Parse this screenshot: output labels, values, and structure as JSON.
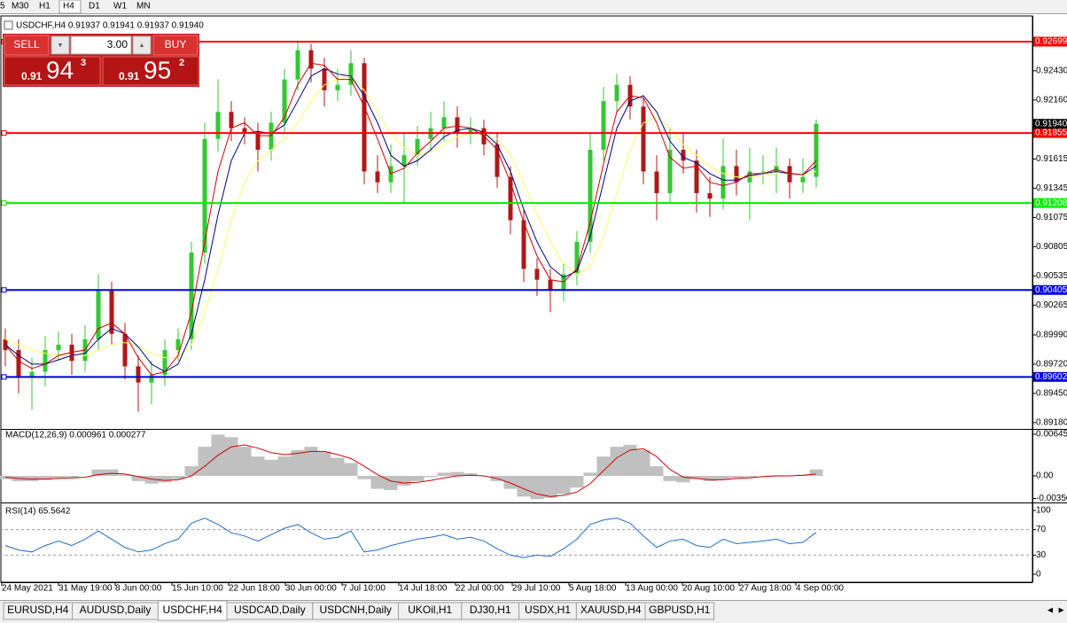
{
  "toolbar": {
    "timeframes": [
      "5",
      "M30",
      "H1",
      "H4",
      "D1",
      "W1",
      "MN"
    ],
    "active": "H4"
  },
  "trade_panel": {
    "sell": {
      "label": "SELL",
      "prefix": "0.91",
      "big": "94",
      "sup": "3"
    },
    "volume": "3.00",
    "buy": {
      "label": "BUY",
      "prefix": "0.91",
      "big": "95",
      "sup": "2"
    }
  },
  "chart_data": [
    {
      "type": "candlestick",
      "title": "USDCHF,H4  0.91937 0.91941 0.91937 0.91940",
      "up_color": "#32c832",
      "down_color": "#b01818",
      "open": [
        0.8995,
        0.8985,
        0.896,
        0.8965,
        0.8985,
        0.899,
        0.8975,
        0.8995,
        0.904,
        0.9,
        0.897,
        0.8955,
        0.8962,
        0.8985,
        0.8995,
        0.9075,
        0.918,
        0.9205,
        0.919,
        0.9185,
        0.917,
        0.9195,
        0.9235,
        0.9262,
        0.9245,
        0.9225,
        0.923,
        0.925,
        0.915,
        0.914,
        0.9155,
        0.9165,
        0.918,
        0.919,
        0.92,
        0.9185,
        0.919,
        0.9175,
        0.9145,
        0.9105,
        0.906,
        0.905,
        0.904,
        0.9055,
        0.9085,
        0.917,
        0.9215,
        0.923,
        0.921,
        0.915,
        0.913,
        0.917,
        0.916,
        0.913,
        0.9125,
        0.9155,
        0.914,
        0.915,
        0.915,
        0.9155,
        0.914,
        0.9145
      ],
      "high": [
        0.9005,
        0.8995,
        0.8978,
        0.8998,
        0.9002,
        0.9,
        0.9008,
        0.9055,
        0.9048,
        0.901,
        0.898,
        0.8975,
        0.8995,
        0.9005,
        0.9085,
        0.9195,
        0.9235,
        0.9215,
        0.92,
        0.9195,
        0.9205,
        0.9245,
        0.927,
        0.9268,
        0.9255,
        0.9245,
        0.9262,
        0.9255,
        0.9165,
        0.9175,
        0.9185,
        0.9192,
        0.9205,
        0.9215,
        0.921,
        0.92,
        0.9198,
        0.9185,
        0.9155,
        0.9115,
        0.907,
        0.906,
        0.9065,
        0.9095,
        0.9185,
        0.9228,
        0.924,
        0.9238,
        0.9218,
        0.9165,
        0.919,
        0.9185,
        0.917,
        0.9145,
        0.918,
        0.917,
        0.9172,
        0.9165,
        0.9172,
        0.9162,
        0.9162,
        0.9198
      ],
      "low": [
        0.897,
        0.8945,
        0.893,
        0.8952,
        0.8975,
        0.8962,
        0.8965,
        0.8985,
        0.899,
        0.8958,
        0.8928,
        0.8935,
        0.8952,
        0.8975,
        0.8985,
        0.9065,
        0.9168,
        0.9178,
        0.9175,
        0.915,
        0.916,
        0.9185,
        0.9225,
        0.9232,
        0.921,
        0.9215,
        0.922,
        0.9138,
        0.913,
        0.913,
        0.912,
        0.9155,
        0.9168,
        0.9178,
        0.9172,
        0.9175,
        0.9165,
        0.9135,
        0.9092,
        0.9048,
        0.9035,
        0.902,
        0.903,
        0.9045,
        0.9075,
        0.916,
        0.9205,
        0.9198,
        0.9138,
        0.9105,
        0.912,
        0.9148,
        0.9112,
        0.9108,
        0.9115,
        0.9128,
        0.9105,
        0.9138,
        0.913,
        0.9125,
        0.913,
        0.9135
      ],
      "close": [
        0.8985,
        0.896,
        0.8965,
        0.8985,
        0.899,
        0.8975,
        0.8995,
        0.904,
        0.9,
        0.897,
        0.8955,
        0.8962,
        0.8985,
        0.8995,
        0.9075,
        0.918,
        0.9205,
        0.919,
        0.9185,
        0.917,
        0.9195,
        0.9235,
        0.9262,
        0.9245,
        0.9225,
        0.923,
        0.925,
        0.915,
        0.914,
        0.9155,
        0.9165,
        0.918,
        0.919,
        0.92,
        0.9185,
        0.919,
        0.9175,
        0.9145,
        0.9105,
        0.906,
        0.905,
        0.904,
        0.9055,
        0.9085,
        0.917,
        0.9215,
        0.923,
        0.921,
        0.915,
        0.913,
        0.917,
        0.916,
        0.913,
        0.9125,
        0.9155,
        0.914,
        0.915,
        0.915,
        0.9155,
        0.914,
        0.9145,
        0.9194
      ],
      "moving_averages": [
        {
          "color": "#ffff60",
          "values": [
            0.8995,
            0.899,
            0.8985,
            0.8982,
            0.898,
            0.898,
            0.898,
            0.8985,
            0.899,
            0.8992,
            0.8988,
            0.8982,
            0.8978,
            0.8978,
            0.899,
            0.902,
            0.906,
            0.9105,
            0.914,
            0.916,
            0.917,
            0.918,
            0.9195,
            0.9215,
            0.923,
            0.9235,
            0.9238,
            0.9225,
            0.9205,
            0.9185,
            0.9172,
            0.9165,
            0.9168,
            0.9175,
            0.9182,
            0.9185,
            0.9185,
            0.918,
            0.9165,
            0.914,
            0.911,
            0.9085,
            0.9065,
            0.9055,
            0.9062,
            0.909,
            0.913,
            0.917,
            0.9195,
            0.92,
            0.919,
            0.9175,
            0.9165,
            0.9155,
            0.9148,
            0.9145,
            0.9145,
            0.9146,
            0.9148,
            0.9148,
            0.9147,
            0.915
          ]
        },
        {
          "color": "#000080",
          "values": [
            0.899,
            0.898,
            0.8972,
            0.8972,
            0.8976,
            0.898,
            0.8982,
            0.8995,
            0.9005,
            0.9,
            0.8988,
            0.8972,
            0.8965,
            0.8972,
            0.9,
            0.905,
            0.911,
            0.916,
            0.9185,
            0.9187,
            0.9185,
            0.9193,
            0.9215,
            0.9238,
            0.9245,
            0.924,
            0.9238,
            0.922,
            0.9195,
            0.9165,
            0.9155,
            0.916,
            0.917,
            0.9182,
            0.9188,
            0.919,
            0.9186,
            0.9175,
            0.915,
            0.9115,
            0.9085,
            0.9062,
            0.9052,
            0.9058,
            0.909,
            0.914,
            0.919,
            0.9215,
            0.922,
            0.9205,
            0.9178,
            0.9163,
            0.9158,
            0.9148,
            0.9142,
            0.9142,
            0.9146,
            0.9148,
            0.915,
            0.9148,
            0.9147,
            0.9155
          ]
        },
        {
          "color": "#d00000",
          "values": [
            0.899,
            0.8975,
            0.8968,
            0.8972,
            0.898,
            0.8983,
            0.8985,
            0.9005,
            0.901,
            0.9,
            0.8978,
            0.8962,
            0.8965,
            0.898,
            0.902,
            0.9085,
            0.915,
            0.919,
            0.9195,
            0.9183,
            0.9183,
            0.92,
            0.923,
            0.925,
            0.9248,
            0.9235,
            0.9235,
            0.921,
            0.918,
            0.9148,
            0.9153,
            0.9167,
            0.9178,
            0.919,
            0.9192,
            0.919,
            0.9183,
            0.917,
            0.914,
            0.9103,
            0.9072,
            0.905,
            0.9048,
            0.906,
            0.9103,
            0.9157,
            0.9205,
            0.922,
            0.9218,
            0.9195,
            0.9163,
            0.9153,
            0.9155,
            0.914,
            0.9137,
            0.914,
            0.9148,
            0.9148,
            0.9152,
            0.9148,
            0.9147,
            0.916
          ]
        }
      ],
      "hlines": [
        {
          "value": 0.92699,
          "color": "#ff0000"
        },
        {
          "value": 0.91855,
          "color": "#ff0000"
        },
        {
          "value": 0.91208,
          "color": "#00ee00"
        },
        {
          "value": 0.90405,
          "color": "#0000dd"
        },
        {
          "value": 0.89602,
          "color": "#0000dd"
        }
      ],
      "current_price": {
        "value": 0.9194,
        "label": "0.91940"
      },
      "ylim": [
        0.8913,
        0.9292
      ],
      "yticks": [
        {
          "value": 0.9243,
          "label": "0.92430"
        },
        {
          "value": 0.9216,
          "label": "0.92160"
        },
        0.91615,
        0.91345,
        0.91075,
        0.90805,
        0.90535,
        0.90265,
        {
          "value": 0.8999,
          "label": "0.89990"
        },
        {
          "value": 0.8972,
          "label": "0.89720"
        },
        {
          "value": 0.8945,
          "label": "0.89450"
        },
        {
          "value": 0.8918,
          "label": "0.89180"
        }
      ]
    },
    {
      "type": "macd",
      "title": "MACD(12,26,9) 0.000961 0.000277",
      "histogram": {
        "color": "#c0c0c0",
        "values": [
          -0.0005,
          -0.0008,
          -0.0008,
          -0.0006,
          -0.0003,
          -0.0002,
          0,
          0.001,
          0.001,
          0.0002,
          -0.0008,
          -0.0012,
          -0.001,
          -0.0005,
          0.0015,
          0.0045,
          0.0064,
          0.006,
          0.0045,
          0.003,
          0.0025,
          0.003,
          0.004,
          0.0045,
          0.0038,
          0.0028,
          0.002,
          -0.0005,
          -0.002,
          -0.0022,
          -0.0015,
          -0.0008,
          -0.0002,
          0.0005,
          0.0006,
          0.0004,
          0,
          -0.0008,
          -0.002,
          -0.0032,
          -0.0036,
          -0.0034,
          -0.0028,
          -0.0018,
          0.0005,
          0.003,
          0.0045,
          0.0048,
          0.004,
          0.0015,
          -0.0008,
          -0.001,
          -0.0004,
          -0.0008,
          -0.0006,
          -0.0003,
          -0.0002,
          0,
          0.0001,
          0,
          0.0002,
          0.001
        ]
      },
      "signal": {
        "color": "#d00000",
        "values": [
          -0.0002,
          -0.0004,
          -0.0005,
          -0.0005,
          -0.0004,
          -0.0003,
          -0.0002,
          0.0002,
          0.0004,
          0.0003,
          -0.0001,
          -0.0005,
          -0.0007,
          -0.0006,
          0,
          0.0015,
          0.0032,
          0.0045,
          0.0048,
          0.0043,
          0.0036,
          0.0033,
          0.0035,
          0.0038,
          0.0038,
          0.0033,
          0.0027,
          0.0015,
          0.0002,
          -0.0008,
          -0.0011,
          -0.001,
          -0.0007,
          -0.0003,
          0,
          0.0001,
          0,
          -0.0004,
          -0.0011,
          -0.002,
          -0.0028,
          -0.0032,
          -0.003,
          -0.0025,
          -0.0012,
          0.0008,
          0.0028,
          0.004,
          0.0042,
          0.003,
          0.001,
          -0.0002,
          -0.0004,
          -0.0006,
          -0.0006,
          -0.0004,
          -0.0003,
          -0.0001,
          0,
          0,
          0.0001,
          0.0003
        ]
      },
      "ylim": [
        -0.00398,
        0.00714
      ],
      "yticks": [
        0.006451,
        {
          "value": 0,
          "label": "0.00"
        },
        {
          "value": -0.0035,
          "label": "-0.00350"
        }
      ]
    },
    {
      "type": "rsi",
      "title": "RSI(14) 65.5642",
      "color": "#1e6fc8",
      "values": [
        45,
        38,
        35,
        45,
        52,
        45,
        55,
        68,
        55,
        42,
        35,
        38,
        48,
        55,
        80,
        88,
        78,
        65,
        60,
        52,
        62,
        72,
        78,
        65,
        55,
        58,
        68,
        35,
        38,
        45,
        50,
        55,
        58,
        62,
        55,
        58,
        52,
        40,
        30,
        26,
        30,
        28,
        40,
        55,
        78,
        85,
        88,
        80,
        60,
        42,
        52,
        55,
        45,
        42,
        55,
        48,
        50,
        52,
        55,
        48,
        50,
        65.5642
      ],
      "levels": [
        70,
        30
      ],
      "ylim": [
        -12.5,
        111.1
      ],
      "yticks": [
        100,
        70,
        30,
        0
      ],
      "x_labels": [
        "24 May 2021",
        "31 May 19:00",
        "8 Jun 00:00",
        "15 Jun 10:00",
        "22 Jun 18:00",
        "30 Jun 00:00",
        "7 Jul 10:00",
        "14 Jul 18:00",
        "22 Jul 00:00",
        "29 Jul 10:00",
        "5 Aug 18:00",
        "13 Aug 00:00",
        "20 Aug 10:00",
        "27 Aug 18:00",
        "4 Sep 00:00"
      ]
    }
  ],
  "tabs": [
    "EURUSD,H4",
    "AUDUSD,Daily",
    "USDCHF,H4",
    "USDCAD,Daily",
    "USDCNH,Daily",
    "UKOil,H1",
    "DJ30,H1",
    "USDX,H1",
    "XAUUSD,H4",
    "GBPUSD,H1"
  ],
  "active_tab": "USDCHF,H4"
}
